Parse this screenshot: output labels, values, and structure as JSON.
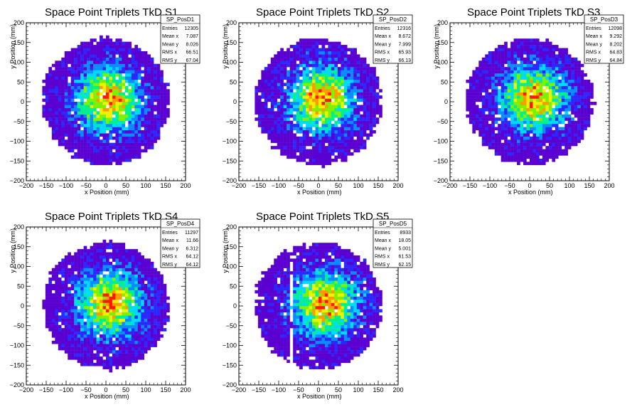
{
  "chart_data": [
    {
      "type": "heatmap",
      "title": "Space Point Triplets TkD S1",
      "xlabel": "x Position (mm)",
      "ylabel": "y Position (mm)",
      "xlim": [
        -200,
        200
      ],
      "ylim": [
        -200,
        200
      ],
      "xticks": [
        "−200",
        "−150",
        "−100",
        "−50",
        "0",
        "50",
        "100",
        "150",
        "200"
      ],
      "yticks": [
        "−200",
        "−150",
        "−100",
        "−50",
        "0",
        "50",
        "100",
        "150",
        "200"
      ],
      "stats_box": {
        "name": "SP_PosD1",
        "rows": [
          {
            "label": "Entries",
            "value": "12305"
          },
          {
            "label": "Mean x",
            "value": "7.087"
          },
          {
            "label": "Mean y",
            "value": "8.026"
          },
          {
            "label": "RMS x",
            "value": "66.51"
          },
          {
            "label": "RMS y",
            "value": "67.04"
          }
        ]
      },
      "distribution": {
        "center_x": 7.087,
        "center_y": 8.026,
        "radius": 160,
        "dead_strip_x": null
      }
    },
    {
      "type": "heatmap",
      "title": "Space Point Triplets TkD S2",
      "xlabel": "x Position (mm)",
      "ylabel": "y Position (mm)",
      "xlim": [
        -200,
        200
      ],
      "ylim": [
        -200,
        200
      ],
      "xticks": [
        "−200",
        "−150",
        "−100",
        "−50",
        "0",
        "50",
        "100",
        "150",
        "200"
      ],
      "yticks": [
        "−200",
        "−150",
        "−100",
        "−50",
        "0",
        "50",
        "100",
        "150",
        "200"
      ],
      "stats_box": {
        "name": "SP_PosD2",
        "rows": [
          {
            "label": "Entries",
            "value": "12316"
          },
          {
            "label": "Mean x",
            "value": "8.672"
          },
          {
            "label": "Mean y",
            "value": "7.999"
          },
          {
            "label": "RMS x",
            "value": "65.93"
          },
          {
            "label": "RMS y",
            "value": "66.13"
          }
        ]
      },
      "distribution": {
        "center_x": 8.672,
        "center_y": 7.999,
        "radius": 160,
        "dead_strip_x": null
      }
    },
    {
      "type": "heatmap",
      "title": "Space Point Triplets TkD S3",
      "xlabel": "x Position (mm)",
      "ylabel": "y Position (mm)",
      "xlim": [
        -200,
        200
      ],
      "ylim": [
        -200,
        200
      ],
      "xticks": [
        "−200",
        "−150",
        "−100",
        "−50",
        "0",
        "50",
        "100",
        "150",
        "200"
      ],
      "yticks": [
        "−200",
        "−150",
        "−100",
        "−50",
        "0",
        "50",
        "100",
        "150",
        "200"
      ],
      "stats_box": {
        "name": "SP_PosD3",
        "rows": [
          {
            "label": "Entries",
            "value": "12098"
          },
          {
            "label": "Mean x",
            "value": "9.292"
          },
          {
            "label": "Mean y",
            "value": "8.202"
          },
          {
            "label": "RMS x",
            "value": "64.83"
          },
          {
            "label": "RMS y",
            "value": "64.84"
          }
        ]
      },
      "distribution": {
        "center_x": 9.292,
        "center_y": 8.202,
        "radius": 160,
        "dead_strip_x": null
      }
    },
    {
      "type": "heatmap",
      "title": "Space Point Triplets TkD S4",
      "xlabel": "x Position (mm)",
      "ylabel": "y Position (mm)",
      "xlim": [
        -200,
        200
      ],
      "ylim": [
        -200,
        200
      ],
      "xticks": [
        "−200",
        "−150",
        "−100",
        "−50",
        "0",
        "50",
        "100",
        "150",
        "200"
      ],
      "yticks": [
        "−200",
        "−150",
        "−100",
        "−50",
        "0",
        "50",
        "100",
        "150",
        "200"
      ],
      "stats_box": {
        "name": "SP_PosD4",
        "rows": [
          {
            "label": "Entries",
            "value": "11297"
          },
          {
            "label": "Mean x",
            "value": "11.66"
          },
          {
            "label": "Mean y",
            "value": "6.312"
          },
          {
            "label": "RMS x",
            "value": "64.12"
          },
          {
            "label": "RMS y",
            "value": "64.12"
          }
        ]
      },
      "distribution": {
        "center_x": 11.66,
        "center_y": 6.312,
        "radius": 160,
        "dead_strip_x": null
      }
    },
    {
      "type": "heatmap",
      "title": "Space Point Triplets TkD S5",
      "xlabel": "x Position (mm)",
      "ylabel": "y Position (mm)",
      "xlim": [
        -200,
        200
      ],
      "ylim": [
        -200,
        200
      ],
      "xticks": [
        "−200",
        "−150",
        "−100",
        "−50",
        "0",
        "50",
        "100",
        "150",
        "200"
      ],
      "yticks": [
        "−200",
        "−150",
        "−100",
        "−50",
        "0",
        "50",
        "100",
        "150",
        "200"
      ],
      "stats_box": {
        "name": "SP_PosD5",
        "rows": [
          {
            "label": "Entries",
            "value": "8933"
          },
          {
            "label": "Mean x",
            "value": "18.05"
          },
          {
            "label": "Mean y",
            "value": "5.001"
          },
          {
            "label": "RMS x",
            "value": "61.53"
          },
          {
            "label": "RMS y",
            "value": "62.15"
          }
        ]
      },
      "distribution": {
        "center_x": 18.05,
        "center_y": 5.001,
        "radius": 160,
        "dead_strip_x": -65
      }
    }
  ],
  "palette": [
    "#5a00d0",
    "#2a28ff",
    "#0a8cff",
    "#00d8ff",
    "#00f08c",
    "#7ef000",
    "#f0f000",
    "#ff9a00",
    "#ff1800"
  ]
}
